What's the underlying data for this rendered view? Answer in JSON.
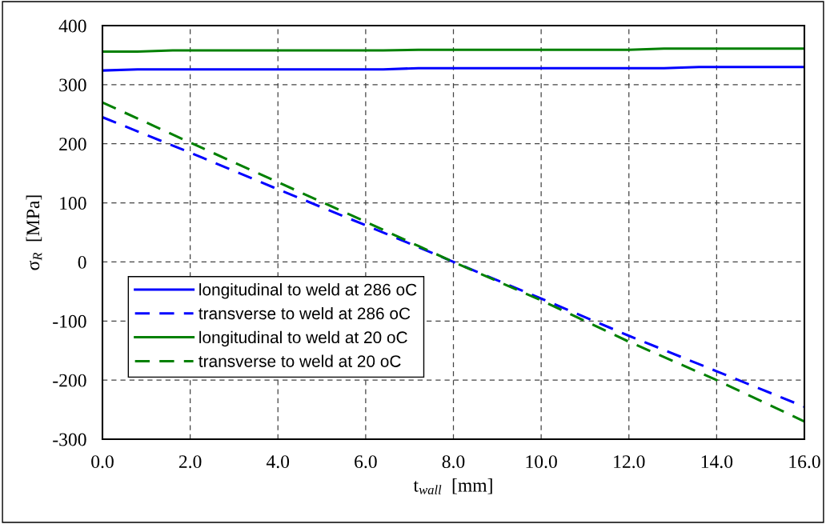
{
  "chart_data": {
    "type": "line",
    "xlabel": "t$_{wall}$  [mm]",
    "ylabel": "σ$_{R}$  [MPa]",
    "xlim": [
      0,
      16
    ],
    "ylim": [
      -300,
      400
    ],
    "xticks": [
      {
        "value": 0,
        "label": "0.0"
      },
      {
        "value": 2,
        "label": "2.0"
      },
      {
        "value": 4,
        "label": "4.0"
      },
      {
        "value": 6,
        "label": "6.0"
      },
      {
        "value": 8,
        "label": "8.0"
      },
      {
        "value": 10,
        "label": "10.0"
      },
      {
        "value": 12,
        "label": "12.0"
      },
      {
        "value": 14,
        "label": "14.0"
      },
      {
        "value": 16,
        "label": "16.0"
      }
    ],
    "yticks": [
      -300,
      -200,
      -100,
      0,
      100,
      200,
      300,
      400
    ],
    "grid": true,
    "legend": "bottom left",
    "marker": "none",
    "series": [
      {
        "name": "longitudinal to weld at 286 oC",
        "color": "#0000ff",
        "line_style": "solid",
        "x": [
          0,
          0.8,
          6.4,
          7.2,
          12.8,
          13.6,
          16
        ],
        "values": [
          324,
          326,
          326,
          328,
          328,
          330,
          330
        ]
      },
      {
        "name": "transverse to weld at 286 oC",
        "color": "#0000ff",
        "line_style": "dashed",
        "x": [
          0,
          2,
          4,
          6,
          7.2,
          8,
          10,
          12,
          14,
          16
        ],
        "values": [
          245,
          185,
          123,
          62,
          25,
          0,
          -62,
          -125,
          -185,
          -245
        ]
      },
      {
        "name": "longitudinal to weld at 20 oC",
        "color": "#008000",
        "line_style": "solid",
        "x": [
          0,
          0.8,
          1.6,
          6.4,
          7.2,
          12,
          12.8,
          16
        ],
        "values": [
          356,
          356,
          358,
          358,
          359,
          359,
          361,
          361
        ]
      },
      {
        "name": "transverse to weld at 20 oC",
        "color": "#008000",
        "line_style": "dashed",
        "x": [
          0,
          2,
          4,
          6,
          7.2,
          8,
          10,
          12,
          14,
          16
        ],
        "values": [
          270,
          202,
          135,
          68,
          27,
          0,
          -65,
          -135,
          -200,
          -270
        ]
      }
    ]
  }
}
